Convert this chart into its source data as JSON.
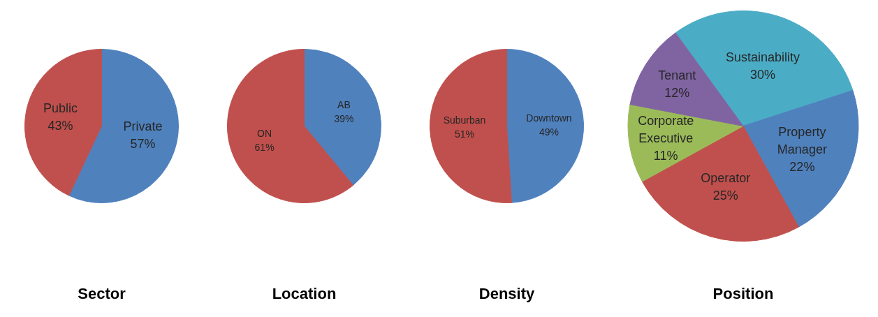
{
  "chart_data": [
    {
      "type": "pie",
      "title": "Sector",
      "categories": [
        "Private",
        "Public"
      ],
      "values": [
        57,
        43
      ],
      "value_labels": [
        "57%",
        "43%"
      ],
      "colors": [
        "#4f81bd",
        "#c0504d"
      ],
      "legend": false
    },
    {
      "type": "pie",
      "title": "Location",
      "categories": [
        "AB",
        "ON"
      ],
      "values": [
        39,
        61
      ],
      "value_labels": [
        "39%",
        "61%"
      ],
      "colors": [
        "#4f81bd",
        "#c0504d"
      ],
      "legend": false
    },
    {
      "type": "pie",
      "title": "Density",
      "categories": [
        "Downtown",
        "Suburban"
      ],
      "values": [
        49,
        51
      ],
      "value_labels": [
        "49%",
        "51%"
      ],
      "colors": [
        "#4f81bd",
        "#c0504d"
      ],
      "legend": false
    },
    {
      "type": "pie",
      "title": "Position",
      "categories": [
        "Sustainability",
        "Property\nManager",
        "Operator",
        "Corporate\nExecutive",
        "Tenant"
      ],
      "values": [
        30,
        22,
        25,
        11,
        12
      ],
      "value_labels": [
        "30%",
        "22%",
        "25%",
        "11%",
        "12%"
      ],
      "colors": [
        "#4bacc6",
        "#4f81bd",
        "#c0504d",
        "#9bbb59",
        "#8064a2"
      ],
      "legend": false
    }
  ]
}
